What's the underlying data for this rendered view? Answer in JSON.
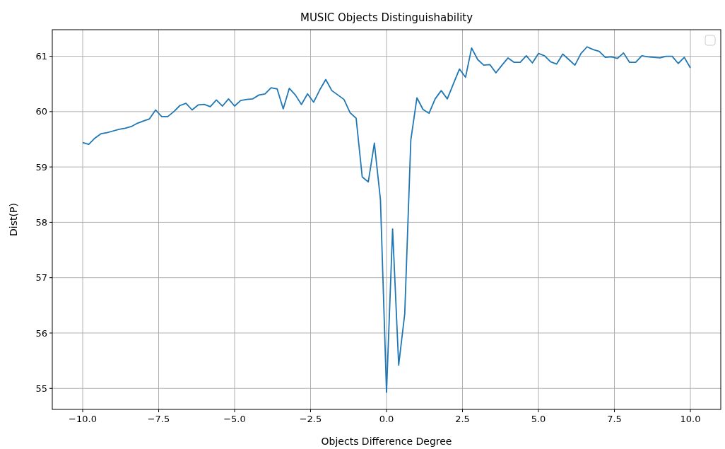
{
  "chart_data": {
    "type": "line",
    "title": "MUSIC Objects Distinguishability",
    "xlabel": "Objects Difference Degree",
    "ylabel": "Dist(P)",
    "x": [
      -10,
      -9.8,
      -9.6,
      -9.4,
      -9.2,
      -9,
      -8.8,
      -8.6,
      -8.4,
      -8.2,
      -8,
      -7.8,
      -7.6,
      -7.4,
      -7.2,
      -7,
      -6.8,
      -6.6,
      -6.4,
      -6.2,
      -6,
      -5.8,
      -5.6,
      -5.4,
      -5.2,
      -5,
      -4.8,
      -4.6,
      -4.4,
      -4.2,
      -4,
      -3.8,
      -3.6,
      -3.4,
      -3.2,
      -3,
      -2.8,
      -2.6,
      -2.4,
      -2.2,
      -2,
      -1.8,
      -1.6,
      -1.4,
      -1.2,
      -1,
      -0.8,
      -0.6,
      -0.4,
      -0.2,
      0,
      0.2,
      0.4,
      0.6,
      0.8,
      1,
      1.2,
      1.4,
      1.6,
      1.8,
      2,
      2.2,
      2.4,
      2.6,
      2.8,
      3,
      3.2,
      3.4,
      3.6,
      3.8,
      4,
      4.2,
      4.4,
      4.6,
      4.8,
      5,
      5.2,
      5.4,
      5.6,
      5.8,
      6,
      6.2,
      6.4,
      6.6,
      6.8,
      7,
      7.2,
      7.4,
      7.6,
      7.8,
      8,
      8.2,
      8.4,
      8.6,
      8.8,
      9,
      9.2,
      9.4,
      9.6,
      9.8,
      10
    ],
    "series": [
      {
        "color": "#1f77b4",
        "values": [
          59.44,
          59.41,
          59.52,
          59.6,
          59.62,
          59.65,
          59.68,
          59.7,
          59.73,
          59.79,
          59.83,
          59.87,
          60.03,
          59.91,
          59.91,
          60.0,
          60.11,
          60.15,
          60.03,
          60.12,
          60.13,
          60.09,
          60.21,
          60.1,
          60.23,
          60.1,
          60.2,
          60.22,
          60.23,
          60.3,
          60.32,
          60.43,
          60.41,
          60.05,
          60.42,
          60.3,
          60.13,
          60.32,
          60.17,
          60.39,
          60.58,
          60.38,
          60.3,
          60.22,
          59.98,
          59.88,
          58.82,
          58.73,
          59.43,
          58.41,
          54.93,
          57.88,
          55.42,
          56.35,
          59.49,
          60.25,
          60.04,
          59.97,
          60.23,
          60.38,
          60.23,
          60.5,
          60.77,
          60.62,
          61.15,
          60.94,
          60.84,
          60.85,
          60.7,
          60.84,
          60.97,
          60.89,
          60.89,
          61.01,
          60.88,
          61.05,
          61.01,
          60.9,
          60.86,
          61.04,
          60.94,
          60.84,
          61.05,
          61.17,
          61.12,
          61.09,
          60.98,
          60.99,
          60.96,
          61.06,
          60.89,
          60.89,
          61.01,
          60.99,
          60.98,
          60.97,
          61.0,
          61.0,
          60.87,
          60.98,
          60.79
        ]
      }
    ],
    "xlim": [
      -11,
      11
    ],
    "ylim": [
      54.62,
      61.48
    ],
    "xticks": [
      {
        "value": -10,
        "label": "−10.0"
      },
      {
        "value": -7.5,
        "label": "−7.5"
      },
      {
        "value": -5,
        "label": "−5.0"
      },
      {
        "value": -2.5,
        "label": "−2.5"
      },
      {
        "value": 0,
        "label": "0.0"
      },
      {
        "value": 2.5,
        "label": "2.5"
      },
      {
        "value": 5,
        "label": "5.0"
      },
      {
        "value": 7.5,
        "label": "7.5"
      },
      {
        "value": 10,
        "label": "10.0"
      }
    ],
    "yticks": [
      55,
      56,
      57,
      58,
      59,
      60,
      61
    ],
    "grid": true
  }
}
